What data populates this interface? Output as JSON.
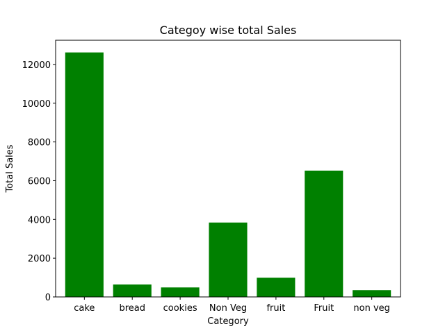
{
  "chart_data": {
    "type": "bar",
    "title": "Categoy wise total Sales",
    "xlabel": "Category",
    "ylabel": "Total Sales",
    "categories": [
      "cake",
      "bread",
      "cookies",
      "Non Veg",
      "fruit",
      "Fruit",
      "non veg"
    ],
    "values": [
      12620,
      640,
      490,
      3840,
      990,
      6520,
      350
    ],
    "ylim": [
      0,
      13250
    ],
    "yticks": [
      0,
      2000,
      4000,
      6000,
      8000,
      10000,
      12000
    ],
    "grid": false,
    "bar_color": "#008000"
  }
}
